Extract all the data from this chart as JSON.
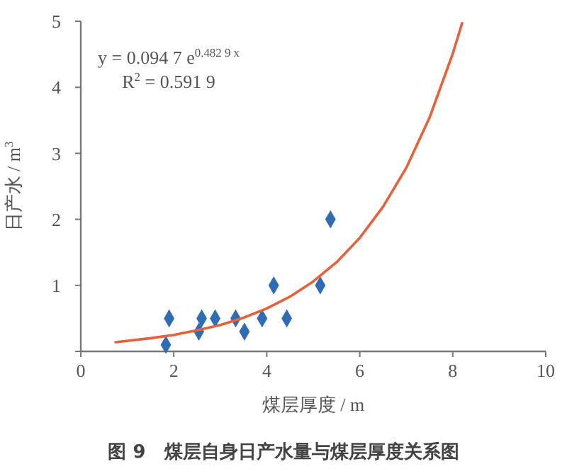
{
  "chart_data": {
    "type": "scatter",
    "title": "图 9　煤层自身日产水量与煤层厚度关系图",
    "xlabel": "煤层厚度 / m",
    "ylabel": "日产水 / m$^{3}$",
    "xlim": [
      0,
      10
    ],
    "ylim": [
      0,
      5
    ],
    "xticks": [
      0,
      2,
      4,
      6,
      8,
      10
    ],
    "yticks": [
      {
        "value": 0,
        "label": null
      },
      1,
      2,
      3,
      4,
      5
    ],
    "grid": false,
    "annotations": [
      "y = 0.094 7 e$^{0.482 9 x}$",
      "R$^{2}$ = 0.591 9"
    ],
    "series": [
      {
        "marker": "diamond",
        "color": "#2e6db4",
        "x": [
          1.83,
          1.9,
          2.54,
          2.6,
          2.89,
          3.33,
          3.52,
          3.9,
          4.15,
          4.43,
          5.15,
          5.37
        ],
        "values": [
          0.1,
          0.5,
          0.3,
          0.5,
          0.5,
          0.5,
          0.3,
          0.5,
          1,
          0.5,
          1,
          2
        ]
      },
      {
        "type": "line",
        "marker": "none",
        "line_style": "solid",
        "color": "#e8603a",
        "x": [
          0.75,
          1.5,
          2,
          2.5,
          3,
          3.5,
          4,
          4.5,
          5,
          5.5,
          6,
          6.5,
          7,
          7.5,
          8,
          8.2
        ],
        "values": [
          0.14,
          0.2,
          0.25,
          0.32,
          0.4,
          0.51,
          0.65,
          0.83,
          1.06,
          1.35,
          1.72,
          2.19,
          2.78,
          3.54,
          4.51,
          4.97
        ]
      }
    ]
  }
}
